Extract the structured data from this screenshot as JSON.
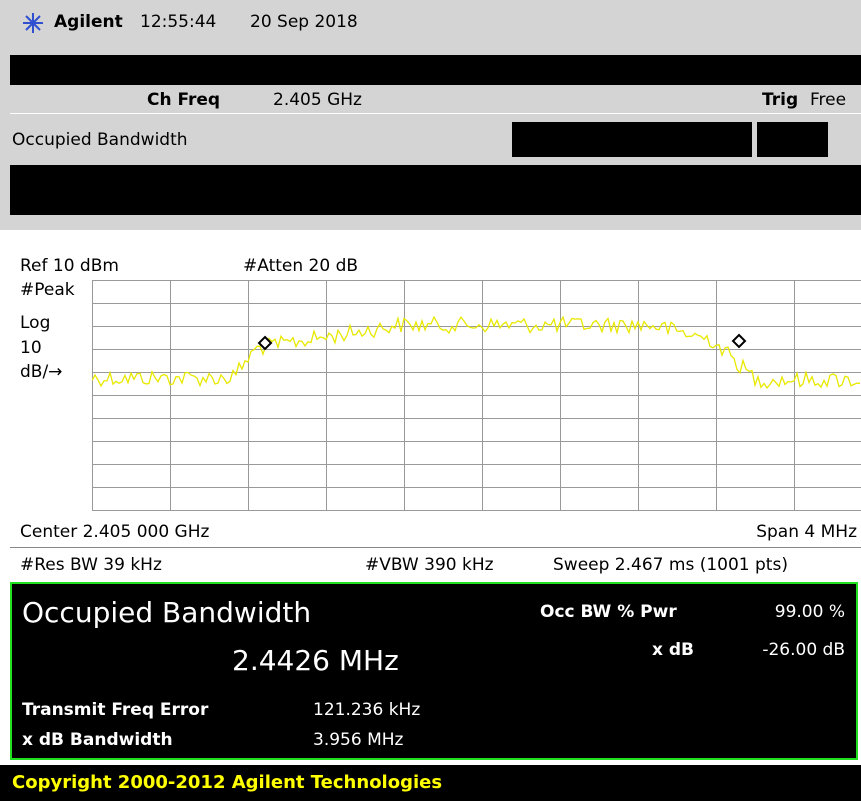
{
  "header": {
    "brand": "Agilent",
    "time": "12:55:44",
    "date": "20 Sep 2018"
  },
  "settings": {
    "ch_freq_label": "Ch Freq",
    "ch_freq": "2.405 GHz",
    "trig_label": "Trig",
    "trig": "Free",
    "mode": "Occupied Bandwidth"
  },
  "graph": {
    "ref": "Ref 10 dBm",
    "atten": "#Atten 20 dB",
    "detector": "#Peak",
    "scale_type": "Log",
    "scale": "10",
    "scale_unit": "dB/→",
    "center": "Center 2.405 000 GHz",
    "span": "Span 4 MHz",
    "res_bw": "#Res BW 39 kHz",
    "vbw": "#VBW 390 kHz",
    "sweep": "Sweep 2.467 ms (1001 pts)"
  },
  "results": {
    "title": "Occupied Bandwidth",
    "value": "2.4426 MHz",
    "occ_label": "Occ BW % Pwr",
    "occ_value": "99.00 %",
    "xdb_label": "x dB",
    "xdb_value": "-26.00 dB",
    "tfe_label": "Transmit Freq Error",
    "tfe_value": "121.236 kHz",
    "xbw_label": "x dB Bandwidth",
    "xbw_value": "3.956 MHz"
  },
  "footer": "Copyright 2000-2012 Agilent Technologies"
}
